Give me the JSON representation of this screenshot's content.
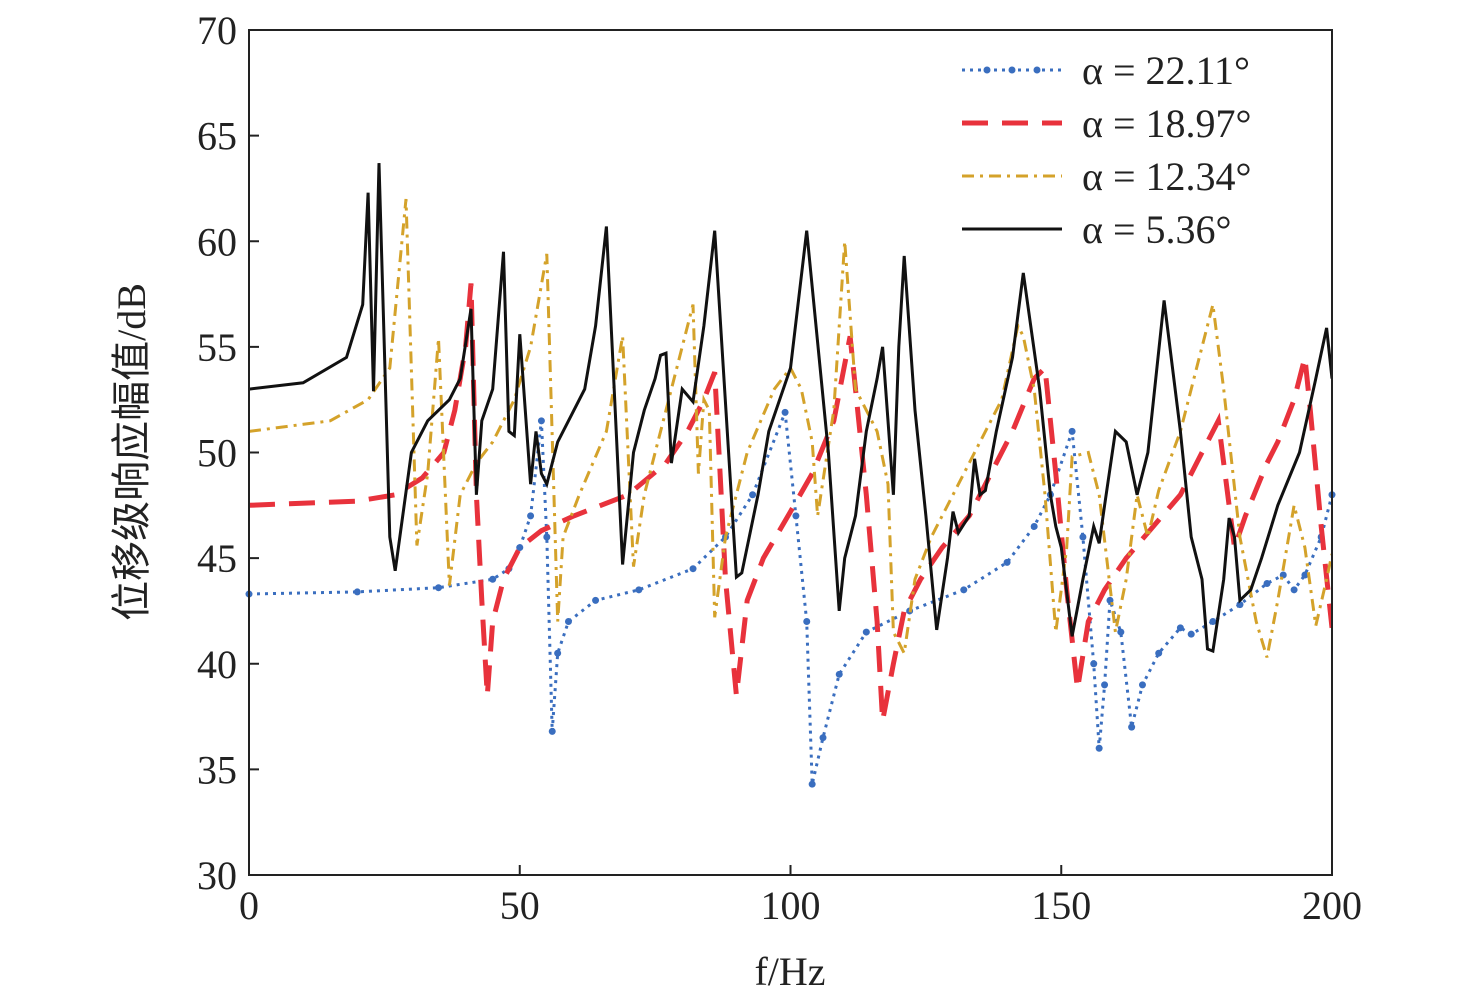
{
  "chart_data": {
    "type": "line",
    "xlabel": "f/Hz",
    "ylabel": "位移级响应幅值/dB",
    "xlim": [
      0,
      200
    ],
    "xticks": [
      0,
      50,
      100,
      150,
      200
    ],
    "ylim": [
      30,
      70
    ],
    "yticks": [
      30,
      35,
      40,
      45,
      50,
      55,
      60,
      65,
      70
    ],
    "legend": "upper right",
    "series": [
      {
        "name": "α = 22.11°",
        "color": "#3a6ebf",
        "style": "dotted",
        "markers": true,
        "x": [
          0,
          20,
          35,
          45,
          48,
          50,
          52,
          54,
          55,
          56,
          57,
          59,
          64,
          72,
          82,
          88,
          93,
          99,
          101,
          103,
          104,
          106,
          109,
          114,
          122,
          132,
          140,
          145,
          148,
          152,
          154,
          156,
          157,
          158,
          159,
          161,
          163,
          165,
          168,
          172,
          174,
          178,
          183,
          188,
          191,
          193,
          195,
          198,
          200
        ],
        "values": [
          43.3,
          43.4,
          43.6,
          44,
          44.5,
          45.5,
          47,
          51.5,
          46,
          36.8,
          40.5,
          42,
          43,
          43.5,
          44.5,
          46,
          48,
          51.9,
          47,
          42,
          34.3,
          36.5,
          39.5,
          41.5,
          42.5,
          43.5,
          44.8,
          46.5,
          48,
          51,
          46,
          40,
          36,
          39,
          43,
          41.5,
          37,
          39,
          40.5,
          41.7,
          41.4,
          42,
          42.8,
          43.8,
          44.2,
          43.5,
          44.2,
          46,
          48
        ]
      },
      {
        "name": "α = 18.97°",
        "color": "#e8323c",
        "style": "dashed",
        "x": [
          0,
          20,
          27,
          32,
          36,
          38,
          40,
          41,
          42,
          43,
          44,
          45,
          47,
          50,
          54,
          60,
          70,
          77,
          81,
          84,
          86,
          87,
          88,
          90,
          92,
          95,
          100,
          104,
          108,
          111,
          114,
          116,
          117,
          119,
          121,
          124,
          128,
          133,
          137,
          141,
          145,
          147,
          149,
          151,
          153,
          155,
          158,
          162,
          167,
          172,
          176,
          179,
          181,
          182,
          184,
          188,
          190,
          193,
          195,
          196,
          198,
          200
        ],
        "values": [
          47.5,
          47.7,
          48,
          48.8,
          50,
          52,
          55,
          58,
          48,
          43,
          38.5,
          42,
          44,
          45.5,
          46.3,
          47,
          48,
          49.5,
          51,
          52.5,
          53.8,
          49,
          44,
          38.5,
          43,
          45,
          47.2,
          49,
          51.5,
          55.5,
          48,
          42,
          37.3,
          40,
          42.5,
          44,
          45.5,
          47,
          49,
          51,
          53.5,
          54,
          49,
          43.5,
          38.8,
          42,
          43.5,
          45,
          46.5,
          48,
          50,
          51.5,
          47.5,
          45.5,
          47,
          49.5,
          50.5,
          52.5,
          54.5,
          52,
          46.5,
          41.7
        ]
      },
      {
        "name": "α = 12.34°",
        "color": "#d4a22a",
        "style": "dashdot",
        "x": [
          0,
          15,
          22,
          26,
          29,
          31,
          33,
          35,
          37,
          39,
          42,
          45,
          49,
          52,
          55,
          57,
          58,
          61,
          66,
          69,
          71,
          73,
          77,
          82,
          83,
          84,
          85,
          86,
          88,
          92,
          97,
          100,
          102,
          104,
          105,
          108,
          110,
          112,
          114,
          116,
          118,
          119,
          121,
          123,
          126,
          130,
          134,
          139,
          142,
          143,
          145,
          147,
          149,
          151,
          152,
          155,
          157,
          160,
          162,
          164,
          166,
          168,
          172,
          175,
          178,
          180,
          183,
          186,
          188,
          190,
          193,
          195,
          197,
          199,
          200
        ],
        "values": [
          51,
          51.5,
          52.5,
          54,
          62,
          45.6,
          49,
          55.4,
          43.7,
          48,
          49.5,
          50.5,
          52.5,
          55,
          59.4,
          42,
          46,
          48,
          51,
          55.5,
          44.6,
          48,
          52,
          57,
          49,
          52.5,
          52,
          42.2,
          46,
          50,
          53,
          54,
          53,
          50.5,
          47,
          52,
          60,
          53,
          52,
          51,
          48.5,
          41.5,
          40.5,
          44,
          46,
          48,
          50,
          52.5,
          56,
          55.5,
          53,
          48,
          41.5,
          45.5,
          49.8,
          50,
          48,
          41.5,
          44,
          48,
          46,
          48.2,
          51,
          54,
          57,
          53,
          46,
          42,
          40.3,
          43,
          47.5,
          45.5,
          41.8,
          44,
          45.2
        ]
      },
      {
        "name": "α = 5.36°",
        "color": "#111111",
        "style": "solid",
        "x": [
          0,
          10,
          18,
          21,
          22,
          23,
          24,
          26,
          27,
          30,
          33,
          37,
          39,
          41,
          42,
          43,
          45,
          47,
          48,
          49,
          50,
          52,
          53,
          54,
          55,
          57,
          59,
          62,
          64,
          66,
          69,
          71,
          73,
          75,
          76,
          77,
          78,
          80,
          82,
          84,
          86,
          90,
          91,
          94,
          96,
          100,
          103,
          107,
          109,
          110,
          112,
          114,
          116,
          117,
          119,
          120,
          121,
          123,
          125,
          127,
          129,
          130,
          131,
          133,
          134,
          135,
          136,
          138,
          141,
          143,
          146,
          148,
          149,
          150,
          152,
          154,
          156,
          157,
          158,
          160,
          162,
          164,
          166,
          169,
          172,
          174,
          176,
          177,
          178,
          180,
          181,
          182,
          183,
          185,
          187,
          190,
          194,
          197,
          199,
          200
        ],
        "values": [
          53,
          53.3,
          54.5,
          57,
          62.3,
          52.9,
          63.7,
          46,
          44.4,
          50,
          51.5,
          52.5,
          53.5,
          56.8,
          48,
          51.5,
          53,
          59.5,
          51,
          50.8,
          55.6,
          48.5,
          51,
          49,
          48.5,
          50.5,
          51.5,
          53,
          56,
          60.7,
          44.7,
          50,
          52,
          53.5,
          54.6,
          54.7,
          49.5,
          53,
          52.4,
          56,
          60.5,
          44.1,
          44.3,
          48,
          51,
          54,
          60.5,
          50,
          42.5,
          45,
          47,
          51,
          53.5,
          55,
          48,
          55,
          59.3,
          52,
          47,
          41.6,
          45,
          47.2,
          46.2,
          47,
          49.7,
          48,
          48.2,
          51,
          54.5,
          58.5,
          53,
          48,
          46.5,
          45.5,
          41.3,
          44,
          46.5,
          45.7,
          47.5,
          51,
          50.5,
          48,
          50,
          57.2,
          51,
          46,
          44,
          40.7,
          40.6,
          44,
          46.9,
          46,
          43,
          43.5,
          45,
          47.5,
          50,
          53.5,
          55.9,
          53.5
        ]
      }
    ]
  }
}
